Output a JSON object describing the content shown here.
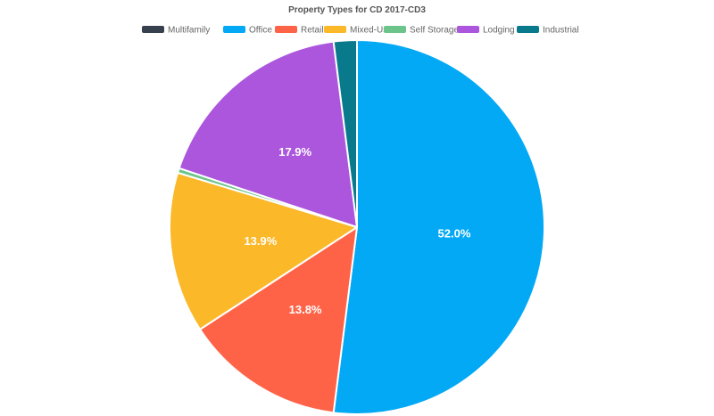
{
  "chart_data": {
    "type": "pie",
    "title": "Property Types for CD 2017-CD3",
    "legend_position": "top",
    "categories": [
      "Multifamily",
      "Office",
      "Retail",
      "Mixed-Use",
      "Self Storage",
      "Lodging",
      "Industrial"
    ],
    "values": [
      0.0,
      52.0,
      13.8,
      13.9,
      0.4,
      17.9,
      2.0
    ],
    "colors": [
      "#36414d",
      "#03a9f4",
      "#ff6347",
      "#fbb829",
      "#6cc48b",
      "#ab56dd",
      "#087a8b"
    ],
    "data_labels": [
      "",
      "52.0%",
      "13.8%",
      "13.9%",
      "",
      "17.9%",
      ""
    ]
  }
}
